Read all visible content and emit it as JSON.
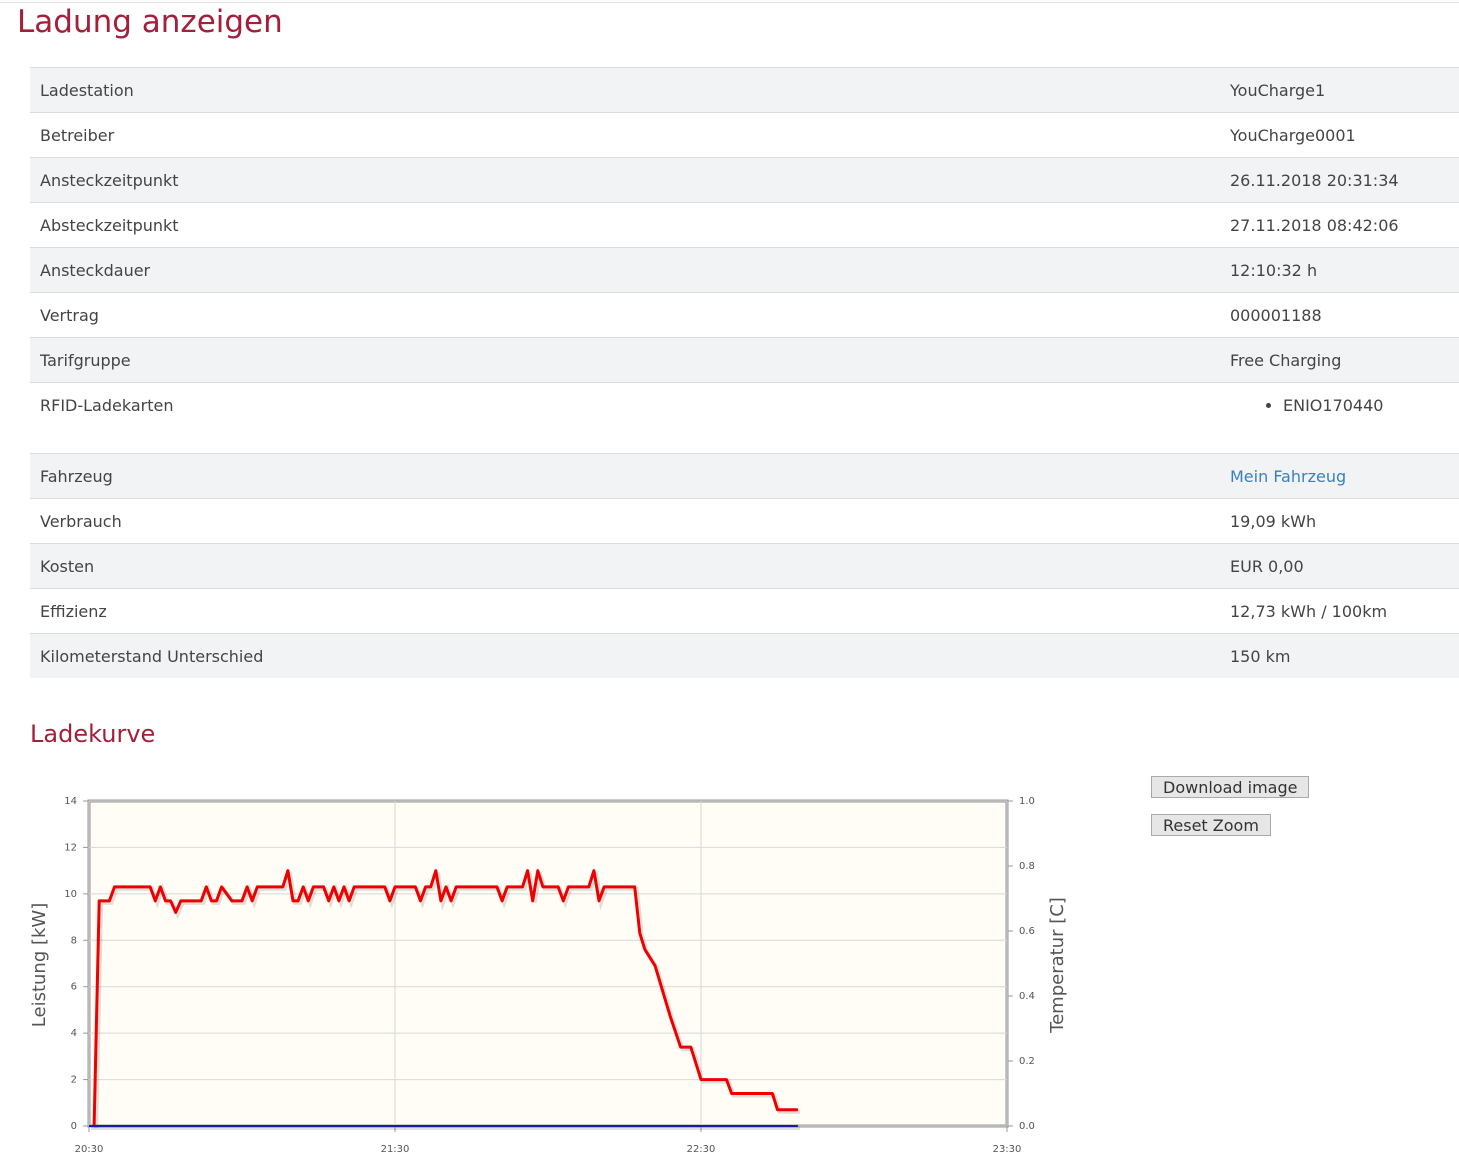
{
  "title": "Ladung anzeigen",
  "table": {
    "rows": [
      [
        "Ladestation",
        "YouCharge1"
      ],
      [
        "Betreiber",
        "YouCharge0001"
      ],
      [
        "Ansteckzeitpunkt",
        "26.11.2018 20:31:34"
      ],
      [
        "Absteckzeitpunkt",
        "27.11.2018 08:42:06"
      ],
      [
        "Ansteckdauer",
        "12:10:32 h"
      ],
      [
        "Vertrag",
        "000001188"
      ],
      [
        "Tarifgruppe",
        "Free Charging"
      ],
      [
        "RFID-Ladekarten",
        "ENIO170440"
      ],
      [
        "Fahrzeug",
        "Mein Fahrzeug"
      ],
      [
        "Verbrauch",
        "19,09 kWh"
      ],
      [
        "Kosten",
        "EUR 0,00"
      ],
      [
        "Effizienz",
        "12,73 kWh / 100km"
      ],
      [
        "Kilometerstand Unterschied",
        "150 km"
      ]
    ]
  },
  "section_title": "Ladekurve",
  "buttons": [
    "Download image",
    "Reset Zoom"
  ],
  "chart_data": {
    "type": "line",
    "y_label": "Leistung [kW]",
    "y2_label": "Temperatur [C]",
    "xlim": [
      "20:30",
      "23:30"
    ],
    "xticks": [
      "20:30",
      "21:30",
      "22:30",
      "23:30"
    ],
    "ylim": [
      0,
      14
    ],
    "yticks": [
      0,
      2,
      4,
      6,
      8,
      10,
      12,
      14
    ],
    "y2lim": [
      0,
      1
    ],
    "y2ticks": [
      {
        "value": 0,
        "label": "0.0"
      },
      {
        "value": 0.2,
        "label": "0.2"
      },
      {
        "value": 0.4,
        "label": "0.4"
      },
      {
        "value": 0.6,
        "label": "0.6"
      },
      {
        "value": 0.8,
        "label": "0.8"
      },
      {
        "value": 1,
        "label": "1.0"
      }
    ],
    "grid": true,
    "series": [
      {
        "color": "#ee0000",
        "x": [
          "20:31",
          "20:32",
          "20:34",
          "20:35",
          "20:42",
          "20:43",
          "20:44",
          "20:45",
          "20:46",
          "20:47",
          "20:48",
          "20:52",
          "20:53",
          "20:54",
          "20:55",
          "20:56",
          "20:58",
          "21:00",
          "21:01",
          "21:02",
          "21:03",
          "21:08",
          "21:09",
          "21:10",
          "21:11",
          "21:12",
          "21:13",
          "21:14",
          "21:16",
          "21:17",
          "21:18",
          "21:19",
          "21:20",
          "21:21",
          "21:22",
          "21:28",
          "21:29",
          "21:30",
          "21:34",
          "21:35",
          "21:36",
          "21:37",
          "21:38",
          "21:39",
          "21:40",
          "21:41",
          "21:42",
          "21:50",
          "21:51",
          "21:52",
          "21:55",
          "21:56",
          "21:57",
          "21:58",
          "21:59",
          "22:02",
          "22:03",
          "22:04",
          "22:08",
          "22:09",
          "22:10",
          "22:11",
          "22:17",
          "22:18",
          "22:19",
          "22:21",
          "22:24",
          "22:26",
          "22:28",
          "22:29",
          "22:30",
          "22:35",
          "22:36",
          "22:44",
          "22:45",
          "22:49"
        ],
        "values": [
          0,
          9.7,
          9.7,
          10.3,
          10.3,
          9.7,
          10.3,
          9.7,
          9.7,
          9.2,
          9.7,
          9.7,
          10.3,
          9.7,
          9.7,
          10.3,
          9.7,
          9.7,
          10.3,
          9.7,
          10.3,
          10.3,
          11.0,
          9.7,
          9.7,
          10.3,
          9.7,
          10.3,
          10.3,
          9.7,
          10.3,
          9.7,
          10.3,
          9.7,
          10.3,
          10.3,
          9.7,
          10.3,
          10.3,
          9.7,
          10.3,
          10.3,
          11.0,
          9.7,
          10.3,
          9.7,
          10.3,
          10.3,
          9.7,
          10.3,
          10.3,
          11.0,
          9.7,
          11.0,
          10.3,
          10.3,
          9.7,
          10.3,
          10.3,
          11.0,
          9.7,
          10.3,
          10.3,
          8.3,
          7.6,
          6.9,
          4.7,
          3.4,
          3.4,
          2.7,
          2.0,
          2.0,
          1.4,
          1.4,
          0.7,
          0.7
        ]
      },
      {
        "color": "#1a1aa8",
        "axis": "y2",
        "x": [
          "20:30",
          "22:49"
        ],
        "values": [
          0,
          0
        ]
      }
    ]
  }
}
